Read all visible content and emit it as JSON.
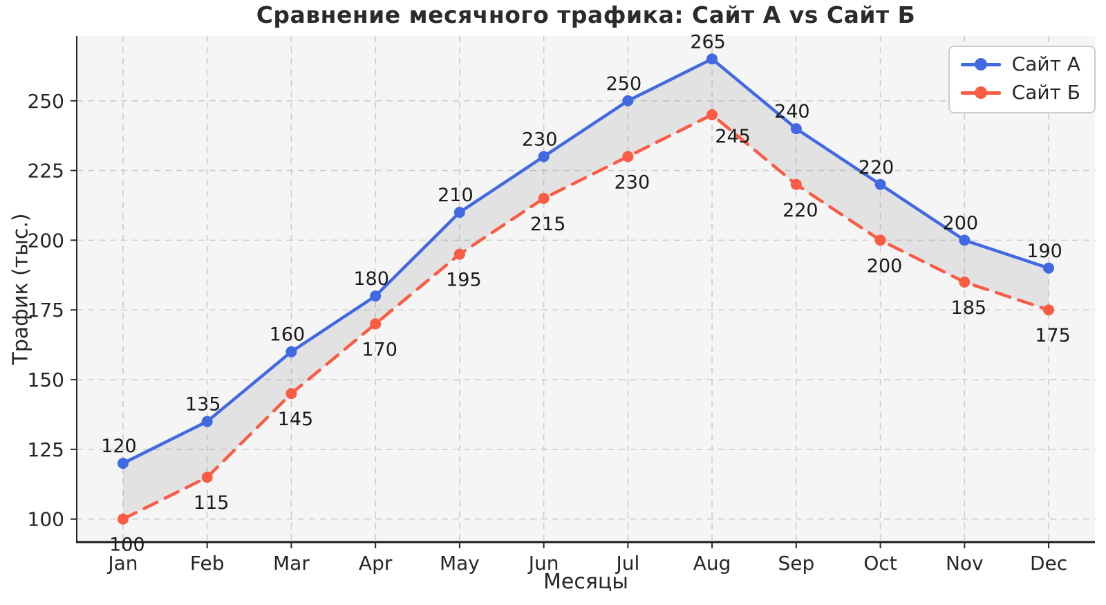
{
  "chart_data": {
    "type": "line",
    "title": "Сравнение месячного трафика: Сайт А vs Сайт Б",
    "xlabel": "Месяцы",
    "ylabel": "Трафик (тыс.)",
    "categories": [
      "Jan",
      "Feb",
      "Mar",
      "Apr",
      "May",
      "Jun",
      "Jul",
      "Aug",
      "Sep",
      "Oct",
      "Nov",
      "Dec"
    ],
    "series": [
      {
        "name": "Сайт А",
        "style": "solid",
        "color": "#4169E1",
        "values": [
          120,
          135,
          160,
          180,
          210,
          230,
          250,
          265,
          240,
          220,
          200,
          190
        ]
      },
      {
        "name": "Сайт Б",
        "style": "dashed",
        "color": "#F95B43",
        "values": [
          100,
          115,
          145,
          170,
          195,
          215,
          230,
          245,
          220,
          200,
          185,
          175
        ]
      }
    ],
    "ylim": [
      91.75,
      273.25
    ],
    "yticks": [
      100,
      125,
      150,
      175,
      200,
      225,
      250
    ],
    "grid": true,
    "legend_position": "top-right",
    "plot_background": "#f5f5f5",
    "grid_color": "#cdcdcd",
    "fill_between_color": "#808080",
    "fill_between_opacity": 0.16,
    "text_color": "#262626",
    "annotation_color": "#1a1a1a"
  }
}
